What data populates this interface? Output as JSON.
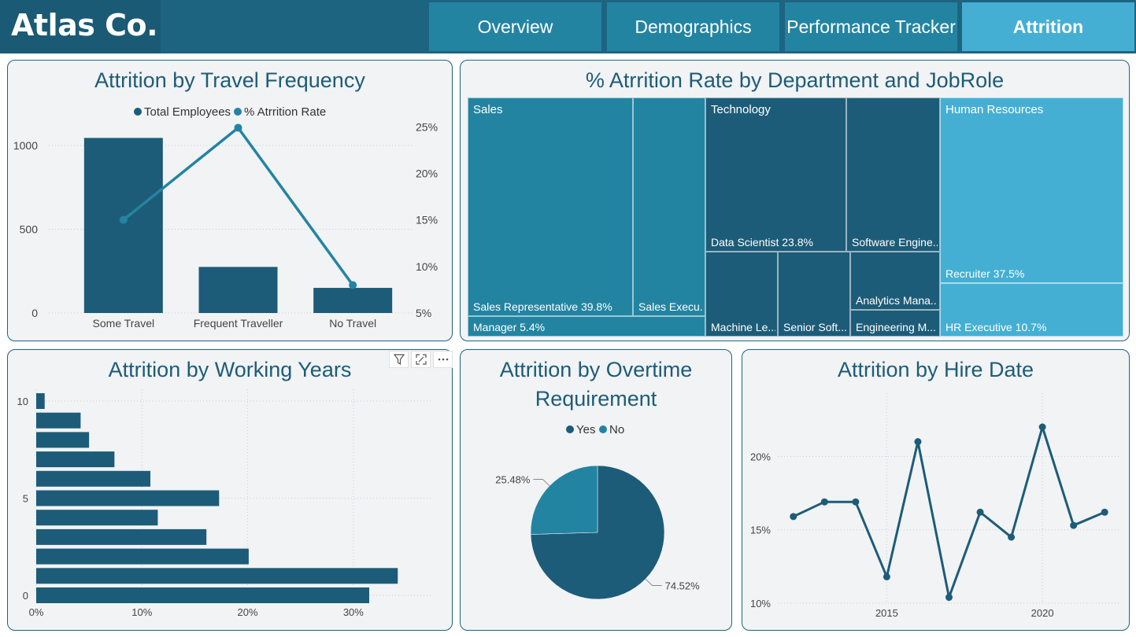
{
  "header": {
    "logo": "Atlas Co.",
    "tabs": [
      {
        "label": "Overview",
        "active": false
      },
      {
        "label": "Demographics",
        "active": false
      },
      {
        "label": "Performance Tracker",
        "active": false
      },
      {
        "label": "Attrition",
        "active": true
      }
    ]
  },
  "colors": {
    "dark": "#1d5c78",
    "mid": "#2384a2",
    "light": "#45afd3",
    "panel_bg": "#f1f3f5"
  },
  "visual_tools": [
    "filter-icon",
    "focus-mode-icon",
    "more-options-icon"
  ],
  "travel": {
    "title": "Attrition by Travel Frequency",
    "chart_data": {
      "type": "bar+line",
      "categories": [
        "Some Travel",
        "Frequent Traveller",
        "No Travel"
      ],
      "series": [
        {
          "name": "Total Employees",
          "type": "bar",
          "axis": "left",
          "values": [
            1045,
            275,
            150
          ]
        },
        {
          "name": "% Atrrition Rate",
          "type": "line",
          "axis": "right",
          "values": [
            15.0,
            24.9,
            8.0
          ]
        }
      ],
      "y_left_ticks": [
        "0",
        "500",
        "1000"
      ],
      "y_left_range": [
        0,
        1150
      ],
      "y_right_ticks": [
        "5%",
        "10%",
        "15%",
        "20%",
        "25%"
      ],
      "y_right_range": [
        5,
        25.7
      ]
    }
  },
  "dept": {
    "title": "% Atrrition Rate by Department and JobRole",
    "groups": [
      "Sales",
      "Technology",
      "Human Resources"
    ],
    "tiles": {
      "sales_rep": "Sales Representative 39.8%",
      "sales_exec": "Sales Execu...",
      "manager": "Manager 5.4%",
      "data_sci": "Data Scientist 23.8%",
      "soft_eng": "Software Engine...",
      "machine": "Machine Le...",
      "senior": "Senior Soft...",
      "analytics": "Analytics Mana...",
      "engineering": "Engineering M...",
      "recruiter": "Recruiter 37.5%",
      "hr_exec": "HR Executive 10.7%"
    }
  },
  "years": {
    "title": "Attrition by Working Years",
    "chart_data": {
      "type": "bar",
      "orientation": "horizontal",
      "categories": [
        10,
        9,
        8,
        7,
        6,
        5,
        4,
        3,
        2,
        1,
        0
      ],
      "values": [
        0.8,
        4.2,
        5.0,
        7.4,
        10.8,
        17.3,
        11.5,
        16.1,
        20.1,
        34.2,
        31.5
      ],
      "x_ticks": [
        "0%",
        "10%",
        "20%",
        "30%"
      ],
      "x_range": [
        0,
        35
      ],
      "y_ticks": [
        "10",
        "5",
        "0"
      ]
    }
  },
  "overtime": {
    "title_line1": "Attrition by Overtime",
    "title_line2": "Requirement",
    "chart_data": {
      "type": "pie",
      "labels": [
        "Yes",
        "No"
      ],
      "values": [
        74.52,
        25.48
      ],
      "value_labels": [
        "74.52%",
        "25.48%"
      ],
      "colors": [
        "#1d5c78",
        "#2384a2"
      ]
    }
  },
  "hire": {
    "title": "Attrition by Hire Date",
    "chart_data": {
      "type": "line",
      "x": [
        2012,
        2013,
        2014,
        2015,
        2016,
        2017,
        2018,
        2019,
        2020,
        2021,
        2022
      ],
      "y": [
        15.9,
        16.9,
        16.9,
        11.8,
        21.0,
        10.4,
        16.2,
        14.5,
        22.0,
        15.3,
        16.2
      ],
      "x_ticks": [
        "2015",
        "2020"
      ],
      "y_ticks": [
        "10%",
        "15%",
        "20%"
      ],
      "x_range": [
        2011.5,
        2022.5
      ],
      "y_range": [
        10,
        23.5
      ]
    }
  }
}
